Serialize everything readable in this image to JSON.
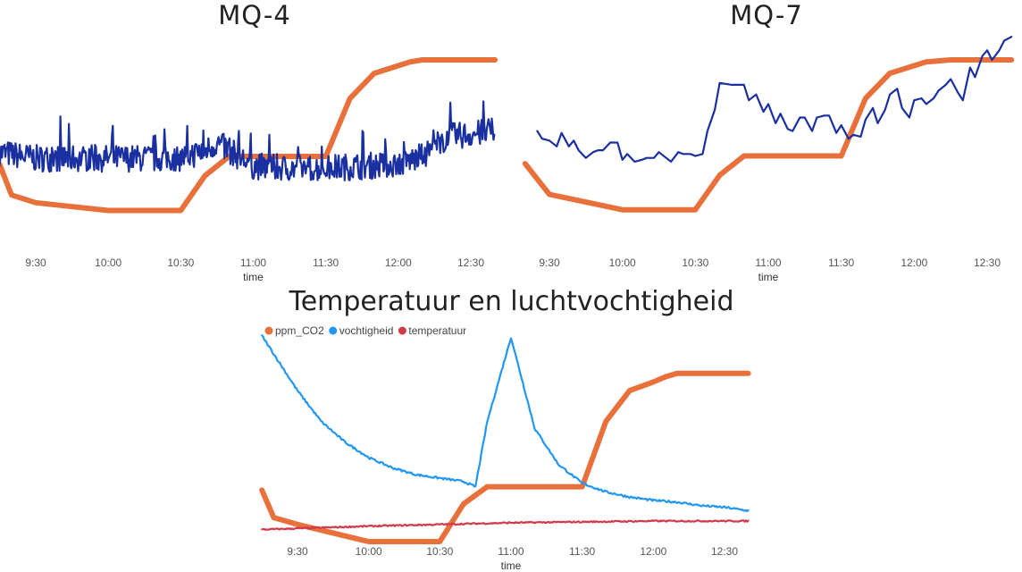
{
  "chart_data": [
    {
      "type": "line",
      "title": "MQ-4",
      "xlabel": "time",
      "x_ticks": [
        "9:30",
        "10:00",
        "10:30",
        "11:00",
        "11:30",
        "12:00",
        "12:30"
      ],
      "grid": false,
      "series": [
        {
          "color": "#E8703A",
          "x": [
            "9:15",
            "9:20",
            "9:30",
            "10:00",
            "10:30",
            "10:40",
            "10:50",
            "11:00",
            "11:10",
            "11:20",
            "11:30",
            "11:40",
            "11:50",
            "12:00",
            "12:05",
            "12:10",
            "12:20",
            "12:30",
            "12:40"
          ],
          "values": [
            0.46,
            0.3,
            0.26,
            0.22,
            0.22,
            0.4,
            0.5,
            0.5,
            0.5,
            0.5,
            0.5,
            0.8,
            0.93,
            0.97,
            0.99,
            1.0,
            1.0,
            1.0,
            1.0
          ]
        },
        {
          "color": "#1A2FA0",
          "style": "noisy",
          "x": [
            "9:15",
            "9:30",
            "10:00",
            "10:30",
            "10:40",
            "10:45",
            "11:00",
            "11:10",
            "11:30",
            "12:00",
            "12:10",
            "12:20",
            "12:40"
          ],
          "values": [
            0.52,
            0.49,
            0.49,
            0.49,
            0.53,
            0.57,
            0.45,
            0.44,
            0.44,
            0.46,
            0.5,
            0.6,
            0.63
          ],
          "noise": 0.07
        }
      ]
    },
    {
      "type": "line",
      "title": "MQ-7",
      "xlabel": "time",
      "x_ticks": [
        "9:30",
        "10:00",
        "10:30",
        "11:00",
        "11:30",
        "12:00",
        "12:30"
      ],
      "grid": false,
      "series": [
        {
          "color": "#E8703A",
          "x": [
            "9:20",
            "9:30",
            "10:00",
            "10:30",
            "10:40",
            "10:50",
            "11:00",
            "11:30",
            "11:40",
            "11:50",
            "12:00",
            "12:05",
            "12:15",
            "12:40"
          ],
          "values": [
            0.46,
            0.3,
            0.22,
            0.22,
            0.4,
            0.5,
            0.5,
            0.5,
            0.8,
            0.93,
            0.97,
            0.99,
            1.0,
            1.0
          ],
          "interp": "linear"
        },
        {
          "color": "#1A2FA0",
          "x": [
            "9:25",
            "9:27",
            "9:30",
            "9:33",
            "9:35",
            "9:38",
            "9:40",
            "9:42",
            "9:45",
            "9:48",
            "9:50",
            "9:52",
            "9:55",
            "9:58",
            "10:00",
            "10:02",
            "10:05",
            "10:08",
            "10:10",
            "10:13",
            "10:15",
            "10:18",
            "10:20",
            "10:23",
            "10:25",
            "10:28",
            "10:30",
            "10:33",
            "10:35",
            "10:38",
            "10:40",
            "10:45",
            "10:50",
            "10:52",
            "10:55",
            "10:58",
            "11:00",
            "11:03",
            "11:05",
            "11:08",
            "11:10",
            "11:13",
            "11:15",
            "11:18",
            "11:20",
            "11:23",
            "11:25",
            "11:28",
            "11:30",
            "11:33",
            "11:35",
            "11:38",
            "11:40",
            "11:43",
            "11:45",
            "11:48",
            "11:50",
            "11:53",
            "11:55",
            "11:58",
            "12:00",
            "12:03",
            "12:05",
            "12:08",
            "12:10",
            "12:13",
            "12:15",
            "12:18",
            "12:20",
            "12:23",
            "12:25",
            "12:28",
            "12:30",
            "12:32",
            "12:35",
            "12:37",
            "12:40"
          ],
          "values": [
            0.63,
            0.59,
            0.58,
            0.55,
            0.62,
            0.55,
            0.58,
            0.53,
            0.49,
            0.52,
            0.53,
            0.53,
            0.57,
            0.57,
            0.48,
            0.51,
            0.47,
            0.48,
            0.49,
            0.49,
            0.52,
            0.49,
            0.47,
            0.52,
            0.51,
            0.51,
            0.5,
            0.51,
            0.63,
            0.74,
            0.88,
            0.87,
            0.87,
            0.79,
            0.82,
            0.73,
            0.77,
            0.67,
            0.72,
            0.64,
            0.63,
            0.7,
            0.7,
            0.63,
            0.7,
            0.71,
            0.71,
            0.62,
            0.66,
            0.59,
            0.61,
            0.6,
            0.69,
            0.75,
            0.67,
            0.74,
            0.82,
            0.85,
            0.75,
            0.7,
            0.79,
            0.8,
            0.77,
            0.8,
            0.84,
            0.87,
            0.9,
            0.83,
            0.79,
            0.96,
            0.91,
            1.02,
            1.05,
            1.0,
            1.05,
            1.1,
            1.12
          ],
          "interp": "linear"
        }
      ]
    },
    {
      "type": "line",
      "title": "Temperatuur en luchtvochtigheid",
      "xlabel": "time",
      "x_ticks": [
        "9:30",
        "10:00",
        "10:30",
        "11:00",
        "11:30",
        "12:00",
        "12:30"
      ],
      "legend": "top-left",
      "grid": false,
      "series": [
        {
          "name": "ppm_CO2",
          "color": "#E8703A",
          "x": [
            "9:15",
            "9:20",
            "9:30",
            "10:00",
            "10:30",
            "10:40",
            "10:50",
            "11:00",
            "11:10",
            "11:20",
            "11:30",
            "11:40",
            "11:50",
            "12:00",
            "12:05",
            "12:10",
            "12:20",
            "12:30",
            "12:40"
          ],
          "values": [
            0.3,
            0.14,
            0.1,
            0.0,
            0.0,
            0.22,
            0.32,
            0.32,
            0.32,
            0.32,
            0.32,
            0.7,
            0.88,
            0.93,
            0.96,
            0.98,
            0.98,
            0.98,
            0.98
          ]
        },
        {
          "name": "vochtigheid",
          "color": "#2196F3",
          "x": [
            "9:15",
            "9:30",
            "9:40",
            "9:50",
            "10:00",
            "10:10",
            "10:20",
            "10:30",
            "10:40",
            "10:45",
            "10:50",
            "11:00",
            "11:10",
            "11:20",
            "11:30",
            "11:40",
            "11:50",
            "12:00",
            "12:10",
            "12:20",
            "12:30",
            "12:40"
          ],
          "values": [
            1.2,
            0.88,
            0.7,
            0.58,
            0.49,
            0.43,
            0.39,
            0.37,
            0.35,
            0.32,
            0.7,
            1.19,
            0.66,
            0.45,
            0.34,
            0.29,
            0.26,
            0.24,
            0.23,
            0.21,
            0.2,
            0.18
          ],
          "noise": 0.006
        },
        {
          "name": "temperatuur",
          "color": "#D13A4A",
          "x": [
            "9:15",
            "10:00",
            "11:00",
            "12:00",
            "12:40"
          ],
          "values": [
            0.07,
            0.09,
            0.11,
            0.12,
            0.12
          ],
          "noise": 0.004
        }
      ]
    }
  ]
}
